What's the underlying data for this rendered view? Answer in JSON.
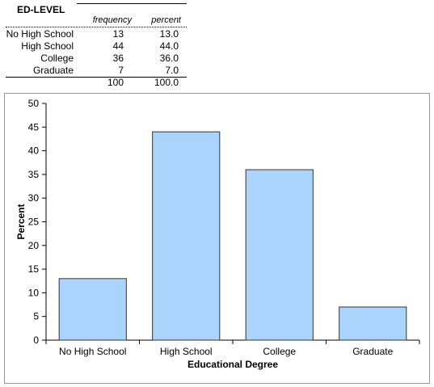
{
  "table": {
    "title": "ED-LEVEL",
    "headers": {
      "frequency": "frequency",
      "percent": "percent"
    },
    "rows": [
      {
        "label": "No High School",
        "frequency": "13",
        "percent": "13.0"
      },
      {
        "label": "High School",
        "frequency": "44",
        "percent": "44.0"
      },
      {
        "label": "College",
        "frequency": "36",
        "percent": "36.0"
      },
      {
        "label": "Graduate",
        "frequency": "7",
        "percent": "7.0"
      }
    ],
    "total": {
      "label": "",
      "frequency": "100",
      "percent": "100.0"
    }
  },
  "chart_data": {
    "type": "bar",
    "categories": [
      "No High School",
      "High School",
      "College",
      "Graduate"
    ],
    "values": [
      13,
      44,
      36,
      7
    ],
    "xlabel": "Educational Degree",
    "ylabel": "Percent",
    "ylim": [
      0,
      50
    ],
    "yticks": [
      "0",
      "5",
      "10",
      "15",
      "20",
      "25",
      "30",
      "35",
      "40",
      "45",
      "50"
    ],
    "grid": false,
    "legend": "none",
    "bar_color": "#aad4fc",
    "bar_stroke": "#333333"
  }
}
